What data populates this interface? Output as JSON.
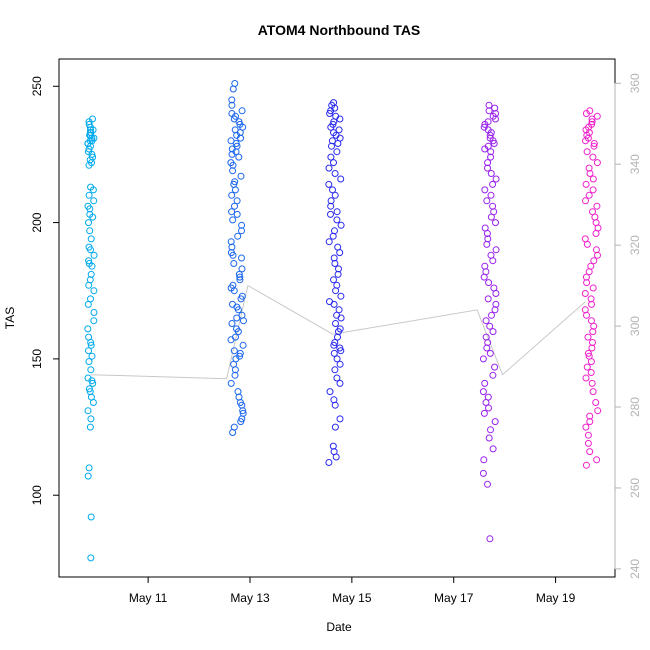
{
  "chart_data": {
    "type": "scatter",
    "title": "ATOM4 Northbound TAS",
    "xlabel": "Date",
    "ylabel": "TAS",
    "x_axis": {
      "type": "date",
      "range": [
        "2023-05-09T06:00",
        "2023-05-20T04:00"
      ],
      "ticks": [
        {
          "value": "2023-05-11",
          "label": "May 11"
        },
        {
          "value": "2023-05-13",
          "label": "May 13"
        },
        {
          "value": "2023-05-15",
          "label": "May 15"
        },
        {
          "value": "2023-05-17",
          "label": "May 17"
        },
        {
          "value": "2023-05-19",
          "label": "May 19"
        }
      ]
    },
    "y_left": {
      "range": [
        70,
        260
      ],
      "ticks": [
        100,
        150,
        200,
        250
      ]
    },
    "y_right": {
      "range": [
        238,
        366
      ],
      "ticks": [
        240,
        260,
        280,
        300,
        320,
        340,
        360
      ],
      "color": "#b3b3b3"
    },
    "grid": false,
    "legend": "none",
    "series": [
      {
        "color": "#00aaee",
        "x_center": "2023-05-09T21:00",
        "x_spread_hours": 1.6,
        "points_y": [
          77,
          92,
          107,
          110,
          125,
          128,
          131,
          134,
          136,
          138,
          139,
          141,
          142,
          143,
          146,
          149,
          151,
          153,
          155,
          156,
          158,
          161,
          164,
          167,
          170,
          172,
          175,
          177,
          179,
          181,
          184,
          185,
          186,
          188,
          190,
          191,
          194,
          197,
          200,
          202,
          203,
          205,
          206,
          208,
          210,
          212,
          213,
          221,
          222,
          223,
          224,
          225,
          226,
          227,
          228,
          229,
          229,
          230,
          230,
          231,
          231,
          232,
          232,
          233,
          233,
          234,
          234,
          235,
          236,
          237,
          238
        ]
      },
      {
        "color": "#1a66ee",
        "x_center": "2023-05-12T18:00",
        "x_spread_hours": 3,
        "points_y": [
          123,
          125,
          127,
          128,
          130,
          131,
          133,
          134,
          136,
          138,
          141,
          144,
          146,
          148,
          150,
          151,
          152,
          153,
          155,
          157,
          158,
          160,
          161,
          163,
          164,
          165,
          166,
          168,
          169,
          170,
          172,
          173,
          175,
          176,
          177,
          179,
          180,
          181,
          183,
          185,
          187,
          188,
          189,
          191,
          193,
          195,
          197,
          199,
          201,
          203,
          204,
          206,
          208,
          210,
          212,
          214,
          215,
          217,
          219,
          221,
          222,
          224,
          225,
          226,
          227,
          228,
          229,
          230,
          231,
          232,
          233,
          234,
          235,
          236,
          237,
          238,
          239,
          240,
          241,
          243,
          245,
          249,
          251
        ]
      },
      {
        "color": "#2a2aee",
        "x_center": "2023-05-14T16:00",
        "x_spread_hours": 3,
        "points_y": [
          112,
          114,
          116,
          118,
          125,
          128,
          133,
          135,
          138,
          141,
          143,
          146,
          148,
          150,
          152,
          153,
          154,
          155,
          156,
          158,
          160,
          161,
          163,
          165,
          166,
          168,
          170,
          171,
          173,
          175,
          177,
          179,
          181,
          183,
          185,
          187,
          189,
          191,
          193,
          195,
          197,
          199,
          201,
          203,
          204,
          206,
          208,
          210,
          212,
          214,
          216,
          218,
          220,
          222,
          224,
          226,
          228,
          229,
          230,
          231,
          232,
          233,
          234,
          235,
          236,
          237,
          238,
          239,
          240,
          241,
          242,
          243,
          244
        ]
      },
      {
        "color": "#9922ee",
        "x_center": "2023-05-17T17:00",
        "x_spread_hours": 3.2,
        "points_y": [
          84,
          104,
          108,
          113,
          117,
          121,
          124,
          127,
          130,
          132,
          134,
          136,
          138,
          141,
          144,
          147,
          150,
          152,
          154,
          156,
          158,
          160,
          162,
          164,
          166,
          168,
          170,
          172,
          174,
          176,
          178,
          180,
          182,
          184,
          186,
          188,
          190,
          192,
          194,
          196,
          198,
          200,
          202,
          204,
          206,
          208,
          210,
          212,
          214,
          216,
          218,
          220,
          222,
          224,
          226,
          227,
          228,
          229,
          230,
          231,
          232,
          233,
          234,
          235,
          236,
          237,
          238,
          239,
          240,
          241,
          242,
          243
        ]
      },
      {
        "color": "#ee22cc",
        "x_center": "2023-05-19T17:00",
        "x_spread_hours": 3,
        "points_y": [
          111,
          113,
          116,
          119,
          122,
          125,
          127,
          129,
          131,
          134,
          138,
          141,
          143,
          145,
          147,
          149,
          151,
          152,
          154,
          156,
          158,
          160,
          162,
          164,
          166,
          168,
          170,
          172,
          174,
          176,
          178,
          180,
          182,
          184,
          186,
          188,
          190,
          192,
          194,
          196,
          198,
          200,
          202,
          204,
          206,
          208,
          210,
          212,
          214,
          216,
          218,
          220,
          222,
          224,
          226,
          228,
          229,
          230,
          231,
          232,
          233,
          234,
          235,
          236,
          237,
          238,
          239,
          240,
          241
        ]
      }
    ],
    "line_series": {
      "color": "#c8c8c8",
      "axis": "right",
      "points": [
        {
          "x": "2023-05-09T21:00",
          "y": 288
        },
        {
          "x": "2023-05-12T13:00",
          "y": 287
        },
        {
          "x": "2023-05-12T23:00",
          "y": 310
        },
        {
          "x": "2023-05-14T15:00",
          "y": 298
        },
        {
          "x": "2023-05-17T11:00",
          "y": 304
        },
        {
          "x": "2023-05-17T23:00",
          "y": 288
        },
        {
          "x": "2023-05-19T14:00",
          "y": 306
        }
      ]
    }
  }
}
